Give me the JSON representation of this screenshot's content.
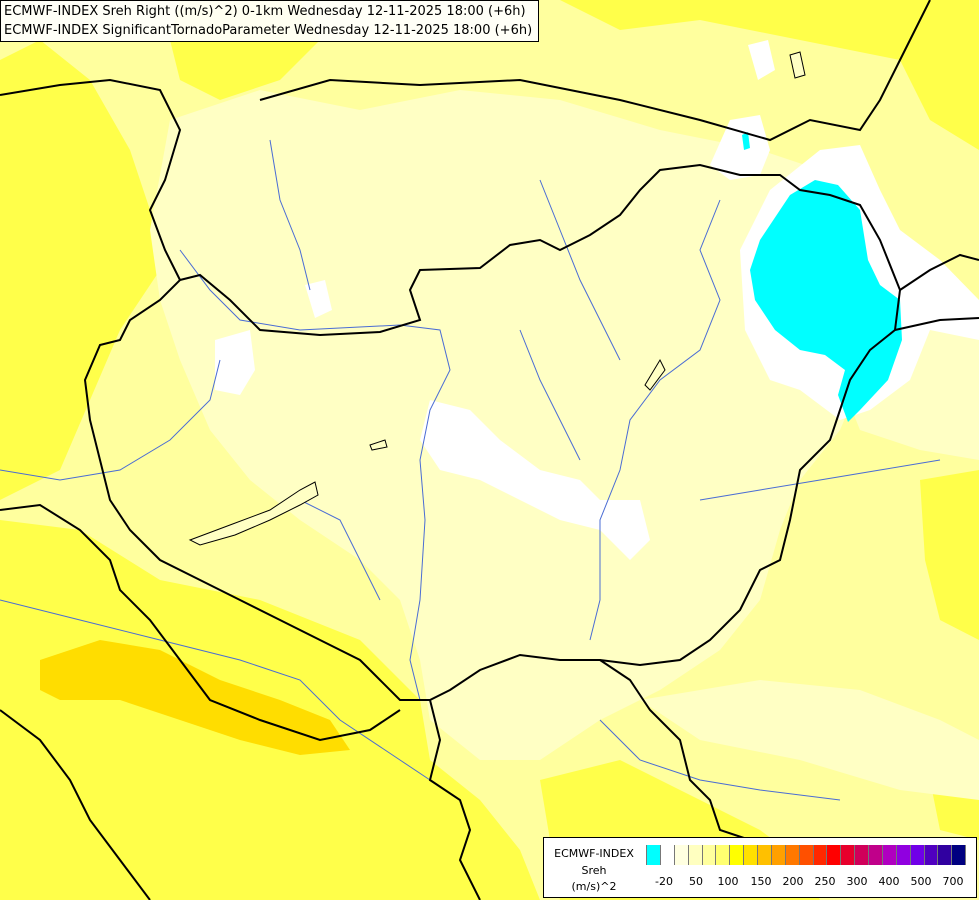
{
  "header": {
    "line1": "ECMWF-INDEX Sreh Right ((m/s)^2) 0-1km Wednesday 12-11-2025 18:00 (+6h)",
    "line2": "ECMWF-INDEX SignificantTornadoParameter Wednesday 12-11-2025 18:00 (+6h)"
  },
  "legend": {
    "source": "ECMWF-INDEX",
    "variable": "Sreh",
    "unit": "(m/s)^2",
    "ticks": [
      "-20",
      "50",
      "100",
      "150",
      "200",
      "250",
      "300",
      "400",
      "500",
      "700"
    ],
    "colors": [
      "#00ffff",
      "#ffffff",
      "#ffffe0",
      "#ffffc0",
      "#ffff9e",
      "#ffff70",
      "#ffff00",
      "#ffe000",
      "#ffc000",
      "#ffa000",
      "#ff7800",
      "#ff5000",
      "#ff2800",
      "#ff0000",
      "#e8002c",
      "#d0005a",
      "#c0008a",
      "#b000c0",
      "#9000e0",
      "#7000e8",
      "#5000c0",
      "#3000a0",
      "#000080"
    ]
  },
  "map": {
    "colors": {
      "base": "#ffff9e",
      "pale": "#ffffc4",
      "yellow": "#ffff4a",
      "gold": "#ffdd00",
      "white": "#ffffff",
      "cyan": "#00ffff",
      "border": "#000000",
      "river": "#4a6cd4"
    }
  }
}
